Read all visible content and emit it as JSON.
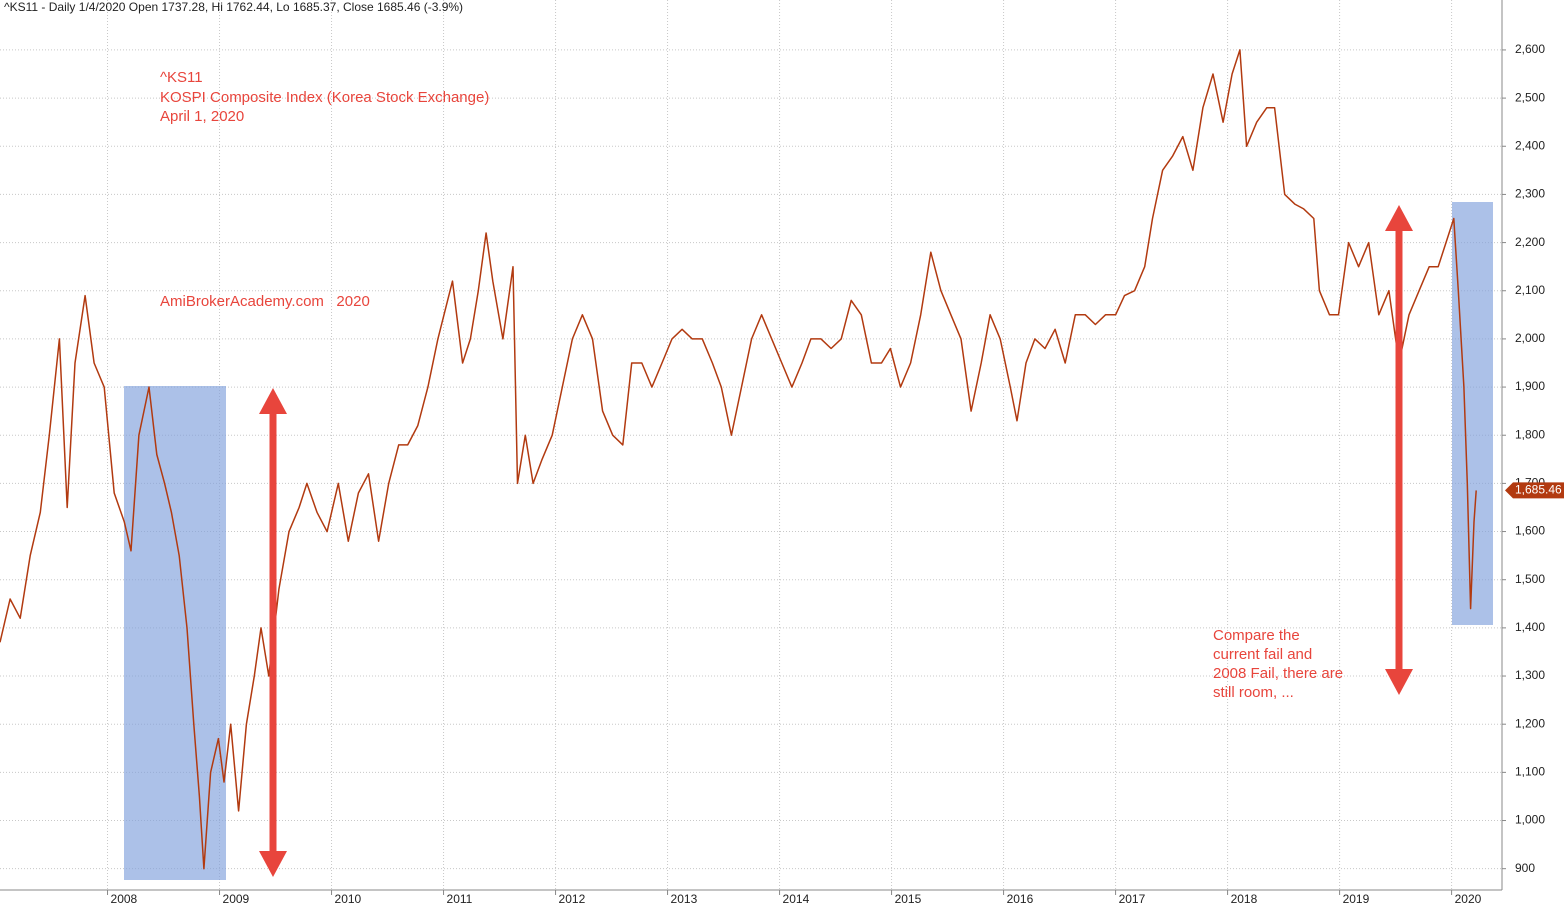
{
  "chart_data": {
    "type": "line",
    "header": "^KS11 - Daily 1/4/2020 Open 1737.28, Hi 1762.44, Lo 1685.37, Close 1685.46 (-3.9%)",
    "annotations": [
      "^KS11",
      "KOSPI Composite Index (Korea Stock Exchange)",
      "April 1, 2020",
      "AmiBrokerAcademy.com   2020"
    ],
    "note_lines": [
      "Compare the",
      "current fail and",
      "2008 Fail, there are",
      "still room, ..."
    ],
    "color": "#b23a10",
    "x": [
      2007.04,
      2007.13,
      2007.22,
      2007.31,
      2007.4,
      2007.48,
      2007.57,
      2007.64,
      2007.71,
      2007.8,
      2007.88,
      2007.97,
      2008.06,
      2008.15,
      2008.21,
      2008.28,
      2008.37,
      2008.44,
      2008.51,
      2008.57,
      2008.64,
      2008.71,
      2008.77,
      2008.82,
      2008.86,
      2008.92,
      2008.99,
      2009.04,
      2009.1,
      2009.17,
      2009.24,
      2009.31,
      2009.37,
      2009.44,
      2009.53,
      2009.62,
      2009.71,
      2009.78,
      2009.87,
      2009.96,
      2010.06,
      2010.15,
      2010.24,
      2010.33,
      2010.42,
      2010.51,
      2010.6,
      2010.68,
      2010.77,
      2010.86,
      2010.95,
      2011.08,
      2011.17,
      2011.24,
      2011.31,
      2011.38,
      2011.44,
      2011.53,
      2011.62,
      2011.66,
      2011.73,
      2011.8,
      2011.88,
      2011.97,
      2012.06,
      2012.15,
      2012.24,
      2012.33,
      2012.42,
      2012.51,
      2012.6,
      2012.68,
      2012.77,
      2012.86,
      2012.95,
      2013.04,
      2013.13,
      2013.22,
      2013.31,
      2013.4,
      2013.48,
      2013.57,
      2013.66,
      2013.75,
      2013.84,
      2013.93,
      2014.02,
      2014.11,
      2014.2,
      2014.28,
      2014.37,
      2014.46,
      2014.55,
      2014.64,
      2014.73,
      2014.82,
      2014.91,
      2014.99,
      2015.08,
      2015.17,
      2015.26,
      2015.35,
      2015.44,
      2015.53,
      2015.62,
      2015.71,
      2015.8,
      2015.88,
      2015.97,
      2016.06,
      2016.12,
      2016.2,
      2016.28,
      2016.37,
      2016.46,
      2016.55,
      2016.64,
      2016.73,
      2016.82,
      2016.91,
      2017.0,
      2017.08,
      2017.17,
      2017.26,
      2017.33,
      2017.42,
      2017.51,
      2017.6,
      2017.69,
      2017.78,
      2017.87,
      2017.96,
      2018.04,
      2018.11,
      2018.17,
      2018.26,
      2018.35,
      2018.42,
      2018.51,
      2018.6,
      2018.68,
      2018.77,
      2018.82,
      2018.91,
      2018.99,
      2019.08,
      2019.17,
      2019.26,
      2019.35,
      2019.44,
      2019.53,
      2019.62,
      2019.71,
      2019.8,
      2019.88,
      2019.95,
      2020.02,
      2020.06,
      2020.11,
      2020.14,
      2020.17,
      2020.2,
      2020.22
    ],
    "values": [
      1370,
      1460,
      1420,
      1550,
      1640,
      1800,
      2000,
      1650,
      1950,
      2090,
      1950,
      1900,
      1680,
      1620,
      1560,
      1800,
      1900,
      1760,
      1700,
      1640,
      1550,
      1400,
      1200,
      1050,
      900,
      1100,
      1170,
      1080,
      1200,
      1020,
      1200,
      1300,
      1400,
      1300,
      1480,
      1600,
      1650,
      1700,
      1640,
      1600,
      1700,
      1580,
      1680,
      1720,
      1580,
      1700,
      1780,
      1780,
      1820,
      1900,
      2000,
      2120,
      1950,
      2000,
      2100,
      2220,
      2120,
      2000,
      2150,
      1700,
      1800,
      1700,
      1750,
      1800,
      1900,
      2000,
      2050,
      2000,
      1850,
      1800,
      1780,
      1950,
      1950,
      1900,
      1950,
      2000,
      2020,
      2000,
      2000,
      1950,
      1900,
      1800,
      1900,
      2000,
      2050,
      2000,
      1950,
      1900,
      1950,
      2000,
      2000,
      1980,
      2000,
      2080,
      2050,
      1950,
      1950,
      1980,
      1900,
      1950,
      2050,
      2180,
      2100,
      2050,
      2000,
      1850,
      1950,
      2050,
      2000,
      1900,
      1830,
      1950,
      2000,
      1980,
      2020,
      1950,
      2050,
      2050,
      2030,
      2050,
      2050,
      2090,
      2100,
      2150,
      2250,
      2350,
      2380,
      2420,
      2350,
      2480,
      2550,
      2450,
      2550,
      2600,
      2400,
      2450,
      2480,
      2480,
      2300,
      2280,
      2270,
      2250,
      2100,
      2050,
      2050,
      2200,
      2150,
      2200,
      2050,
      2100,
      1950,
      2050,
      2100,
      2150,
      2150,
      2200,
      2250,
      2100,
      1900,
      1700,
      1440,
      1620,
      1685.46
    ],
    "last_price": {
      "value": 1685.46,
      "label": "1,685.46"
    },
    "xlim": [
      2007.04,
      2020.45
    ],
    "xticks": [
      2008,
      2009,
      2010,
      2011,
      2012,
      2013,
      2014,
      2015,
      2016,
      2017,
      2018,
      2019,
      2020
    ],
    "ylim": [
      876.5,
      2685
    ],
    "yticks": [
      900,
      {
        "value": 1000,
        "label": "1,000"
      },
      {
        "value": 1100,
        "label": "1,100"
      },
      {
        "value": 1200,
        "label": "1,200"
      },
      {
        "value": 1300,
        "label": "1,300"
      },
      {
        "value": 1400,
        "label": "1,400"
      },
      {
        "value": 1500,
        "label": "1,500"
      },
      {
        "value": 1600,
        "label": "1,600"
      },
      {
        "value": 1700,
        "label": "1,700"
      },
      {
        "value": 1800,
        "label": "1,800"
      },
      {
        "value": 1900,
        "label": "1,900"
      },
      {
        "value": 2000,
        "label": "2,000"
      },
      {
        "value": 2100,
        "label": "2,100"
      },
      {
        "value": 2200,
        "label": "2,200"
      },
      {
        "value": 2300,
        "label": "2,300"
      },
      {
        "value": 2400,
        "label": "2,400"
      },
      {
        "value": 2500,
        "label": "2,500"
      },
      {
        "value": 2600,
        "label": "2,600"
      }
    ],
    "grid": true
  }
}
